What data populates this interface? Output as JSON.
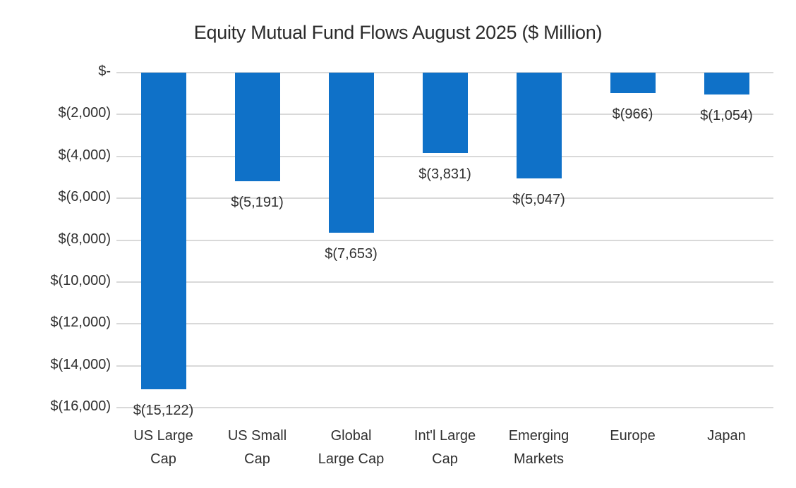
{
  "chart_data": {
    "type": "bar",
    "title": "Equity Mutual Fund Flows August 2025 ($ Million)",
    "categories": [
      "US Large Cap",
      "US Small Cap",
      "Global Large Cap",
      "Int'l Large Cap",
      "Emerging Markets",
      "Europe",
      "Japan"
    ],
    "category_lines": [
      [
        "US Large",
        "Cap"
      ],
      [
        "US Small",
        "Cap"
      ],
      [
        "Global",
        "Large Cap"
      ],
      [
        "Int'l Large",
        "Cap"
      ],
      [
        "Emerging",
        "Markets"
      ],
      [
        "Europe"
      ],
      [
        "Japan"
      ]
    ],
    "values": [
      -15122,
      -5191,
      -7653,
      -3831,
      -5047,
      -966,
      -1054
    ],
    "value_labels": [
      "$(15,122)",
      "$(5,191)",
      "$(7,653)",
      "$(3,831)",
      "$(5,047)",
      "$(966)",
      "$(1,054)"
    ],
    "xlabel": "",
    "ylabel": "",
    "ylim": [
      -16000,
      0
    ],
    "grid": true,
    "legend": false,
    "y_axis": {
      "ticks": [
        {
          "value": 0,
          "label": "$-"
        },
        {
          "value": -2000,
          "label": "$(2,000)"
        },
        {
          "value": -4000,
          "label": "$(4,000)"
        },
        {
          "value": -6000,
          "label": "$(6,000)"
        },
        {
          "value": -8000,
          "label": "$(8,000)"
        },
        {
          "value": -10000,
          "label": "$(10,000)"
        },
        {
          "value": -12000,
          "label": "$(12,000)"
        },
        {
          "value": -14000,
          "label": "$(14,000)"
        },
        {
          "value": -16000,
          "label": "$(16,000)"
        }
      ]
    },
    "colors": {
      "bar": "#0F71C8",
      "gridline": "#D9D9D9",
      "text": "#303030",
      "title_text": "#2B2B2B",
      "background": "#FFFFFF"
    }
  }
}
